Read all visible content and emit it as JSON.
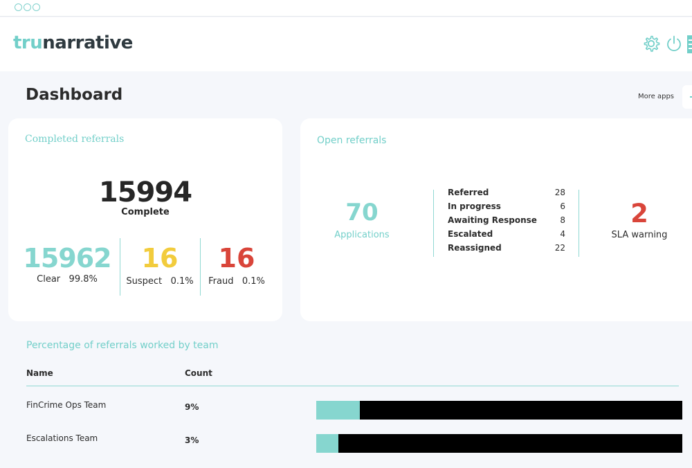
{
  "logo": {
    "part1": "tru",
    "part2": "narrative"
  },
  "header": {
    "settings_icon": "gear-icon",
    "power_icon": "power-icon"
  },
  "page": {
    "title": "Dashboard",
    "more_apps": "More apps"
  },
  "completed": {
    "title": "Completed referrals",
    "total": "15994",
    "total_label": "Complete",
    "clear": {
      "value": "15962",
      "label": "Clear",
      "pct": "99.8%"
    },
    "suspect": {
      "value": "16",
      "label": "Suspect",
      "pct": "0.1%"
    },
    "fraud": {
      "value": "16",
      "label": "Fraud",
      "pct": "0.1%"
    }
  },
  "open": {
    "title": "Open referrals",
    "applications": "70",
    "applications_label": "Applications",
    "rows": [
      {
        "label": "Referred",
        "value": "28"
      },
      {
        "label": "In progress",
        "value": "6"
      },
      {
        "label": "Awaiting Response",
        "value": "8"
      },
      {
        "label": "Escalated",
        "value": "4"
      },
      {
        "label": "Reassigned",
        "value": "22"
      }
    ],
    "sla_value": "2",
    "sla_label": "SLA warning"
  },
  "teams": {
    "title": "Percentage of referrals worked by team",
    "col_name": "Name",
    "col_count": "Count",
    "rows": [
      {
        "name": "FinCrime Ops Team",
        "count": "9%",
        "fraction": 0.12
      },
      {
        "name": "Escalations Team",
        "count": "3%",
        "fraction": 0.06
      }
    ]
  },
  "colors": {
    "accent": "#72cfc9",
    "suspect": "#f2cc3d",
    "fraud": "#d9453a"
  }
}
